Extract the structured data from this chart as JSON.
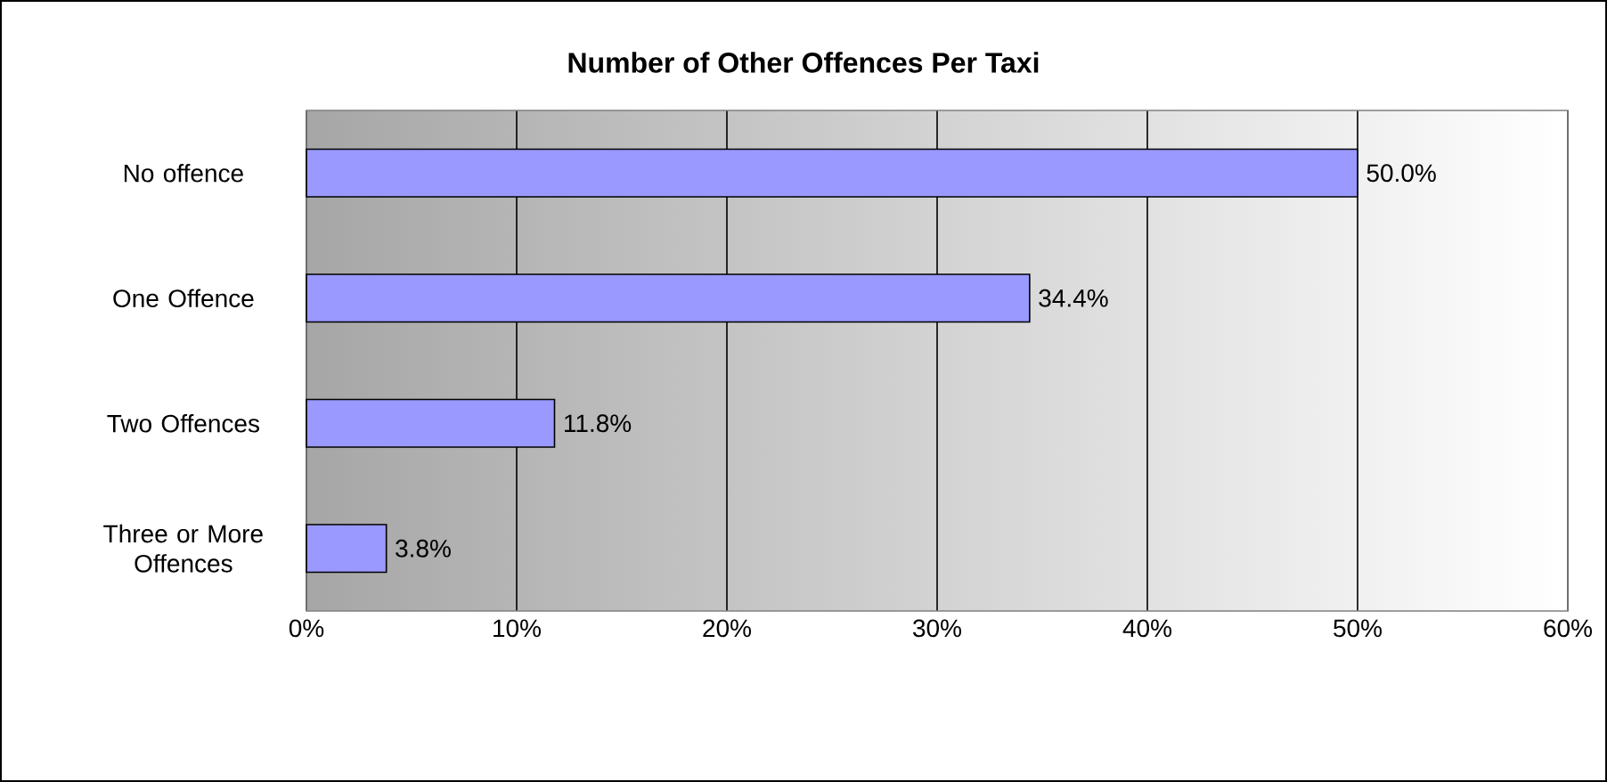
{
  "chart_data": {
    "type": "bar",
    "orientation": "horizontal",
    "title": "Number of Other Offences Per Taxi",
    "categories": [
      "No offence",
      "One Offence",
      "Two Offences",
      "Three or More Offences"
    ],
    "values": [
      50.0,
      34.4,
      11.8,
      3.8
    ],
    "value_labels": [
      "50.0%",
      "34.4%",
      "11.8%",
      "3.8%"
    ],
    "color": "#9999ff",
    "xlim": [
      0,
      60
    ],
    "xticks": [
      {
        "value": 0,
        "label": "0%"
      },
      {
        "value": 10,
        "label": "10%"
      },
      {
        "value": 20,
        "label": "20%"
      },
      {
        "value": 30,
        "label": "30%"
      },
      {
        "value": 40,
        "label": "40%"
      },
      {
        "value": 50,
        "label": "50%"
      },
      {
        "value": 60,
        "label": "60%"
      }
    ],
    "grid": "x"
  }
}
